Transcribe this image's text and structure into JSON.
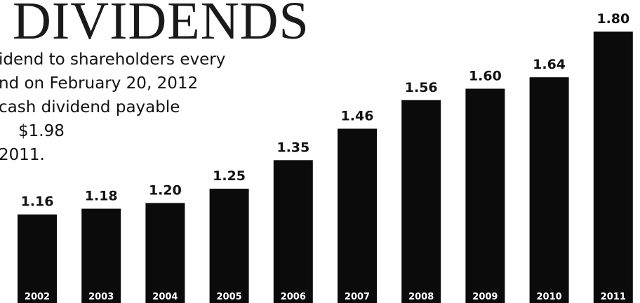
{
  "title": "DIVIDENDS",
  "body_lines": [
    "idend to shareholders every",
    "nd on February 20, 2012",
    "cash dividend payable",
    "$1.98",
    "2011."
  ],
  "colors": {
    "bar": "#0b0b0b",
    "text": "#111111",
    "year_text": "#ffffff"
  },
  "chart_data": {
    "type": "bar",
    "title": "DIVIDENDS",
    "categories": [
      "2002",
      "2003",
      "2004",
      "2005",
      "2006",
      "2007",
      "2008",
      "2009",
      "2010",
      "2011"
    ],
    "values": [
      1.16,
      1.18,
      1.2,
      1.25,
      1.35,
      1.46,
      1.56,
      1.6,
      1.64,
      1.8
    ],
    "value_labels": [
      "1.16",
      "1.18",
      "1.20",
      "1.25",
      "1.35",
      "1.46",
      "1.56",
      "1.60",
      "1.64",
      "1.80"
    ],
    "xlabel": "",
    "ylabel": "",
    "ylim": [
      0.85,
      1.8
    ],
    "grid": false
  }
}
